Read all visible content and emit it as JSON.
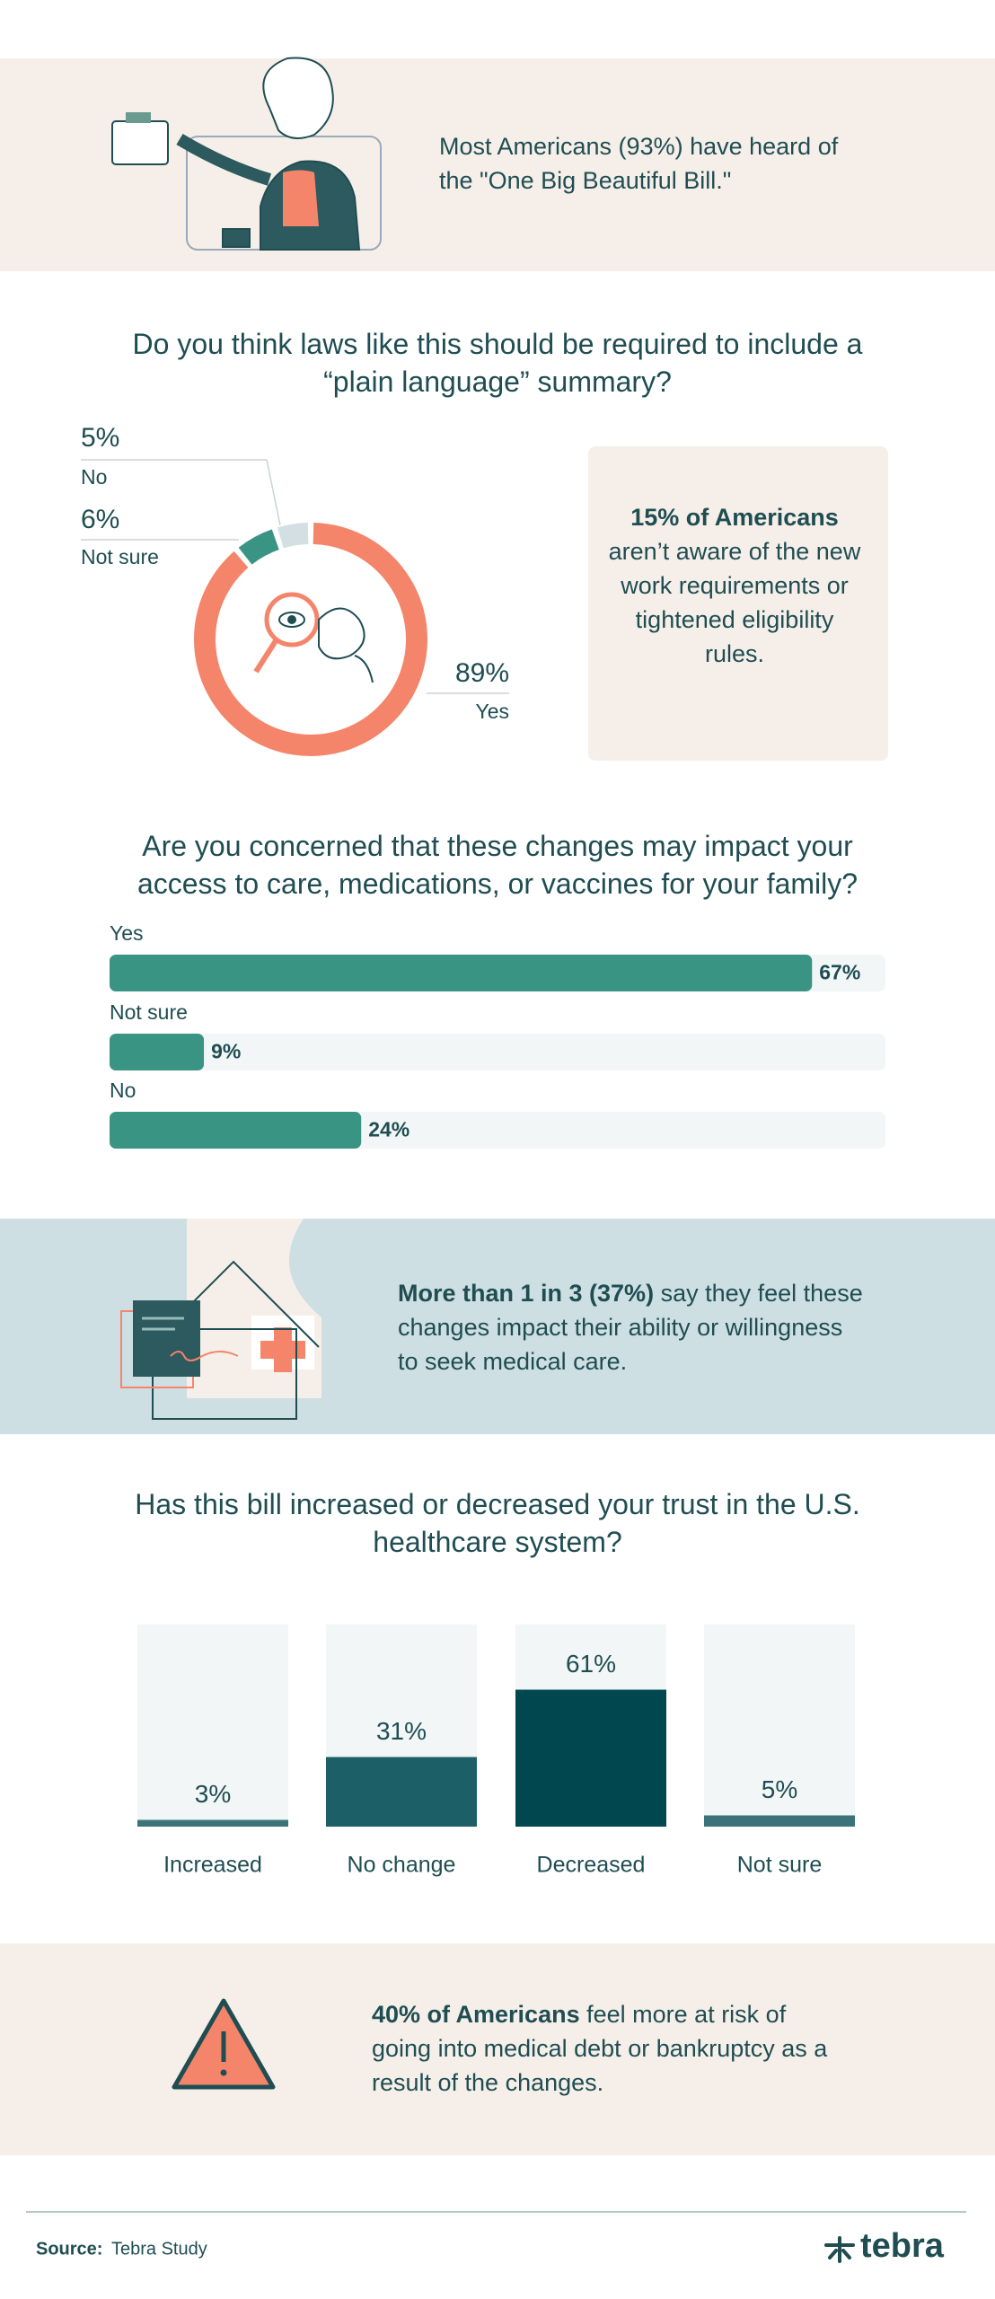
{
  "intro": {
    "text": "Most Americans (93%) have heard of the \"One Big Beautiful Bill.\""
  },
  "chart_data": [
    {
      "type": "donut",
      "title": "Do you think laws like this should be required to include a “plain language” summary?",
      "categories": [
        "Yes",
        "Not sure",
        "No"
      ],
      "values": [
        89,
        6,
        5
      ],
      "value_labels": [
        "89%",
        "6%",
        "5%"
      ],
      "colors": [
        "#f4856a",
        "#3a9484",
        "#d3dfe2"
      ]
    },
    {
      "type": "hbar",
      "title": "Are you concerned that these changes may impact your access to care, medications, or vaccines for your family?",
      "categories": [
        "Yes",
        "Not sure",
        "No"
      ],
      "values": [
        67,
        9,
        24
      ],
      "value_labels": [
        "67%",
        "9%",
        "24%"
      ],
      "color": "#3a9484",
      "xlim": [
        0,
        74
      ]
    },
    {
      "type": "bar",
      "title": "Has this bill increased or decreased your trust in the U.S. healthcare system?",
      "categories": [
        "Increased",
        "No change",
        "Decreased",
        "Not sure"
      ],
      "values": [
        3,
        31,
        61,
        5
      ],
      "value_labels": [
        "3%",
        "31%",
        "61%",
        "5%"
      ],
      "colors": [
        "#3b7378",
        "#1c5f66",
        "#004750",
        "#3b7378"
      ],
      "ylim": [
        0,
        90
      ]
    }
  ],
  "callout_awareness": {
    "bold": "15% of Americans",
    "text": "aren’t aware of the new work requirements or tightened eligibility rules."
  },
  "callout_care": {
    "bold": "More than 1 in 3 (37%)",
    "text": "say they feel these changes impact their ability or willingness to seek medical care."
  },
  "callout_debt": {
    "bold": "40% of Americans",
    "text": "feel more at risk of going into medical debt or bankruptcy as a result of the changes."
  },
  "footer": {
    "source_label": "Source:",
    "source": "Tebra Study",
    "brand": "tebra"
  }
}
